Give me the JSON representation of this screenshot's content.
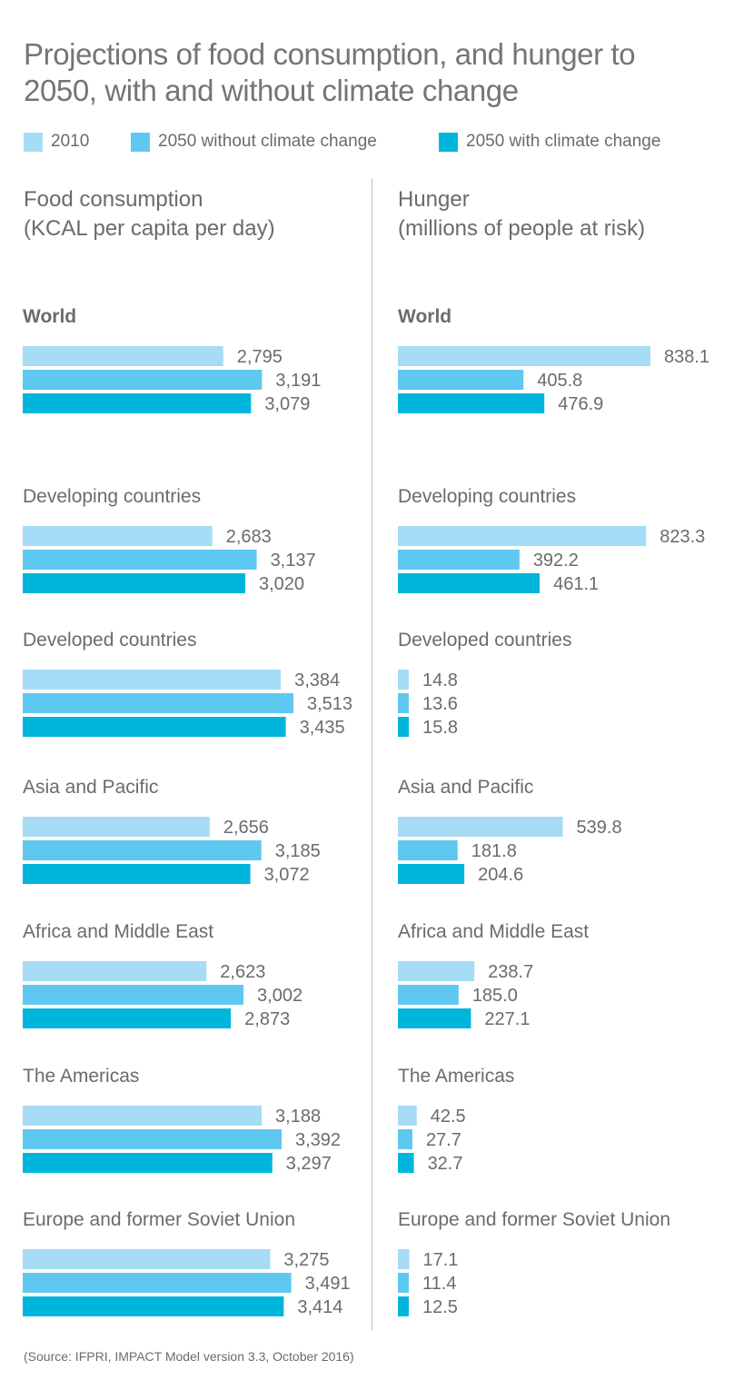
{
  "title": "Projections of food consumption, and hunger to 2050, with and without climate change",
  "legend": [
    {
      "label": "2010",
      "color": "#a6dcf6"
    },
    {
      "label": "2050 without climate change",
      "color": "#5fc8f0"
    },
    {
      "label": "2050 with climate change",
      "color": "#00b5dc"
    }
  ],
  "left_title": [
    "Food consumption",
    "(KCAL per capita per day)"
  ],
  "right_title": [
    "Hunger",
    "(millions of people at risk)"
  ],
  "source": "(Source: IFPRI, IMPACT Model version 3.3, October 2016)",
  "chart_data": [
    {
      "type": "bar",
      "orientation": "horizontal",
      "title": "Food consumption (KCAL per capita per day)",
      "categories": [
        "World",
        "Developing countries",
        "Developed countries",
        "Asia and Pacific",
        "Africa and Middle East",
        "The Americas",
        "Europe and former Soviet Union"
      ],
      "series": [
        {
          "name": "2010",
          "values": [
            2795,
            2683,
            3384,
            2656,
            2623,
            3188,
            3275
          ],
          "labels": [
            "2,795",
            "2,683",
            "3,384",
            "2,656",
            "2,623",
            "3,188",
            "3,275"
          ]
        },
        {
          "name": "2050 without climate change",
          "values": [
            3191,
            3137,
            3513,
            3185,
            3002,
            3392,
            3491
          ],
          "labels": [
            "3,191",
            "3,137",
            "3,513",
            "3,185",
            "3,002",
            "3,392",
            "3,491"
          ]
        },
        {
          "name": "2050 with climate change",
          "values": [
            3079,
            3020,
            3435,
            3072,
            2873,
            3297,
            3414
          ],
          "labels": [
            "3,079",
            "3,020",
            "3,435",
            "3,072",
            "2,873",
            "3,297",
            "3,414"
          ]
        }
      ],
      "xlim": [
        1300,
        3513
      ]
    },
    {
      "type": "bar",
      "orientation": "horizontal",
      "title": "Hunger (millions of people at risk)",
      "categories": [
        "World",
        "Developing countries",
        "Developed countries",
        "Asia and Pacific",
        "Africa and Middle East",
        "The Americas",
        "Europe and former Soviet Union"
      ],
      "series": [
        {
          "name": "2010",
          "values": [
            838.1,
            823.3,
            14.8,
            539.8,
            238.7,
            42.5,
            17.1
          ],
          "labels": [
            "838.1",
            "823.3",
            "14.8",
            "539.8",
            "238.7",
            "42.5",
            "17.1"
          ]
        },
        {
          "name": "2050 without climate change",
          "values": [
            405.8,
            392.2,
            13.6,
            181.8,
            185.0,
            27.7,
            11.4
          ],
          "labels": [
            "405.8",
            "392.2",
            "13.6",
            "181.8",
            "185.0",
            "27.7",
            "11.4"
          ]
        },
        {
          "name": "2050 with climate change",
          "values": [
            476.9,
            461.1,
            15.8,
            204.6,
            227.1,
            32.7,
            12.5
          ],
          "labels": [
            "476.9",
            "461.1",
            "15.8",
            "204.6",
            "227.1",
            "32.7",
            "12.5"
          ]
        }
      ],
      "xlim": [
        0,
        838.1
      ]
    }
  ]
}
